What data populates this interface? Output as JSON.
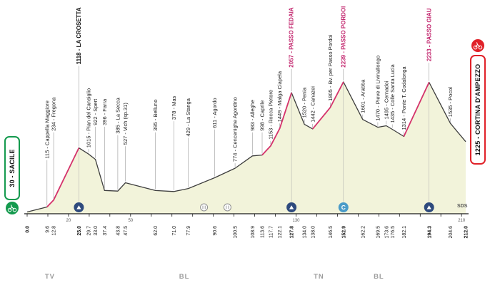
{
  "chart_data": {
    "type": "area",
    "x_unit": "km",
    "length_km": 212,
    "elevation_max_m": 2300,
    "signature": "SDS",
    "colors": {
      "area_fill": "#f2f3da",
      "profile_line": "#3d3d3d",
      "climb": "#d6336c",
      "summit_text": "#c2256d",
      "start": "#149a4e",
      "finish": "#e02128",
      "badge_gpm": "#2e4a7d",
      "badge_coppi": "#4a9bc8",
      "feed": "#8f8f8f",
      "axis": "#1a1a1a",
      "province_text": "#9c9c9c"
    },
    "points": [
      {
        "km": 0.0,
        "ele": 30,
        "label": "30 - SACILE",
        "kind": "start"
      },
      {
        "km": 9.6,
        "ele": 115,
        "label": "115 - Cappella Maggiore",
        "kind": "waypoint"
      },
      {
        "km": 12.8,
        "ele": 234,
        "label": "234 - Fregona",
        "kind": "waypoint"
      },
      {
        "km": 25.0,
        "ele": 1118,
        "label": "1118 - LA CROSETTA",
        "kind": "peak"
      },
      {
        "km": 29.7,
        "ele": 1015,
        "label": "1015 - Pian del Cansiglio",
        "kind": "waypoint"
      },
      {
        "km": 33.0,
        "ele": 922,
        "label": "922 - Spert",
        "kind": "waypoint"
      },
      {
        "km": 37.4,
        "ele": 396,
        "label": "396 - Farra",
        "kind": "waypoint"
      },
      {
        "km": 43.8,
        "ele": 385,
        "label": "385 - La Secca",
        "kind": "waypoint"
      },
      {
        "km": 47.5,
        "ele": 527,
        "label": "527 - Vich (sp.31)",
        "kind": "waypoint"
      },
      {
        "km": 62.0,
        "ele": 395,
        "label": "395 - Belluno",
        "kind": "waypoint"
      },
      {
        "km": 71.0,
        "ele": 378,
        "label": "378 - Mas",
        "kind": "waypoint"
      },
      {
        "km": 77.9,
        "ele": 429,
        "label": "429 - La Stanga",
        "kind": "waypoint"
      },
      {
        "km": 90.6,
        "ele": 611,
        "label": "611 - Agordo",
        "kind": "waypoint"
      },
      {
        "km": 100.5,
        "ele": 774,
        "label": "774 - Cencenighe Agordino",
        "kind": "waypoint"
      },
      {
        "km": 108.9,
        "ele": 983,
        "label": "983 - Alleghe",
        "kind": "waypoint"
      },
      {
        "km": 113.6,
        "ele": 998,
        "label": "998 - Caprile",
        "kind": "waypoint"
      },
      {
        "km": 117.7,
        "ele": 1153,
        "label": "1153 - Rocca Pietore",
        "kind": "waypoint"
      },
      {
        "km": 122.1,
        "ele": 1449,
        "label": "1449 - Malga Ciapela",
        "kind": "waypoint"
      },
      {
        "km": 127.8,
        "ele": 2057,
        "label": "2057 - PASSO FEDAIA",
        "kind": "summit"
      },
      {
        "km": 134.0,
        "ele": 1520,
        "label": "1520 - Penia",
        "kind": "waypoint"
      },
      {
        "km": 138.0,
        "ele": 1442,
        "label": "1442 - Canazei",
        "kind": "waypoint"
      },
      {
        "km": 146.5,
        "ele": 1805,
        "label": "1805 - Bv. per Passo Pordoi",
        "kind": "waypoint"
      },
      {
        "km": 152.9,
        "ele": 2239,
        "label": "2239 - PASSO PORDOI",
        "kind": "summit"
      },
      {
        "km": 162.2,
        "ele": 1601,
        "label": "1601 - Arabba",
        "kind": "waypoint"
      },
      {
        "km": 169.5,
        "ele": 1470,
        "label": "1470 - Pieve di Livinallongo",
        "kind": "waypoint"
      },
      {
        "km": 173.6,
        "ele": 1495,
        "label": "1495 - Cernadoi",
        "kind": "waypoint"
      },
      {
        "km": 176.5,
        "ele": 1435,
        "label": "1435 - Colle Santa Lucia",
        "kind": "waypoint"
      },
      {
        "km": 182.1,
        "ele": 1314,
        "label": "1314 - Ponte T. Codalonga",
        "kind": "waypoint"
      },
      {
        "km": 194.3,
        "ele": 2233,
        "label": "2233 - PASSO GIAU",
        "kind": "summit"
      },
      {
        "km": 204.6,
        "ele": 1535,
        "label": "1535 - Pocol",
        "kind": "waypoint"
      },
      {
        "km": 212.0,
        "ele": 1225,
        "label": "1225 - CORTINA D'AMPEZZO",
        "kind": "finish"
      }
    ],
    "climb_segments_km": [
      [
        9.6,
        25.0
      ],
      [
        113.6,
        127.8
      ],
      [
        138.0,
        152.9
      ],
      [
        182.1,
        194.3
      ]
    ],
    "badges": [
      {
        "km": 25.0,
        "type": "gpm"
      },
      {
        "km": 85.5,
        "type": "feed"
      },
      {
        "km": 96.8,
        "type": "feed"
      },
      {
        "km": 127.8,
        "type": "gpm"
      },
      {
        "km": 152.9,
        "type": "cima-coppi",
        "label": "C"
      },
      {
        "km": 194.3,
        "type": "gpm"
      }
    ],
    "ruler_numbers_km": [
      20,
      50,
      130,
      210
    ],
    "provinces": [
      {
        "label": "TV",
        "km": 11
      },
      {
        "label": "BL",
        "km": 76
      },
      {
        "label": "TN",
        "km": 141
      },
      {
        "label": "BL",
        "km": 170
      }
    ]
  }
}
